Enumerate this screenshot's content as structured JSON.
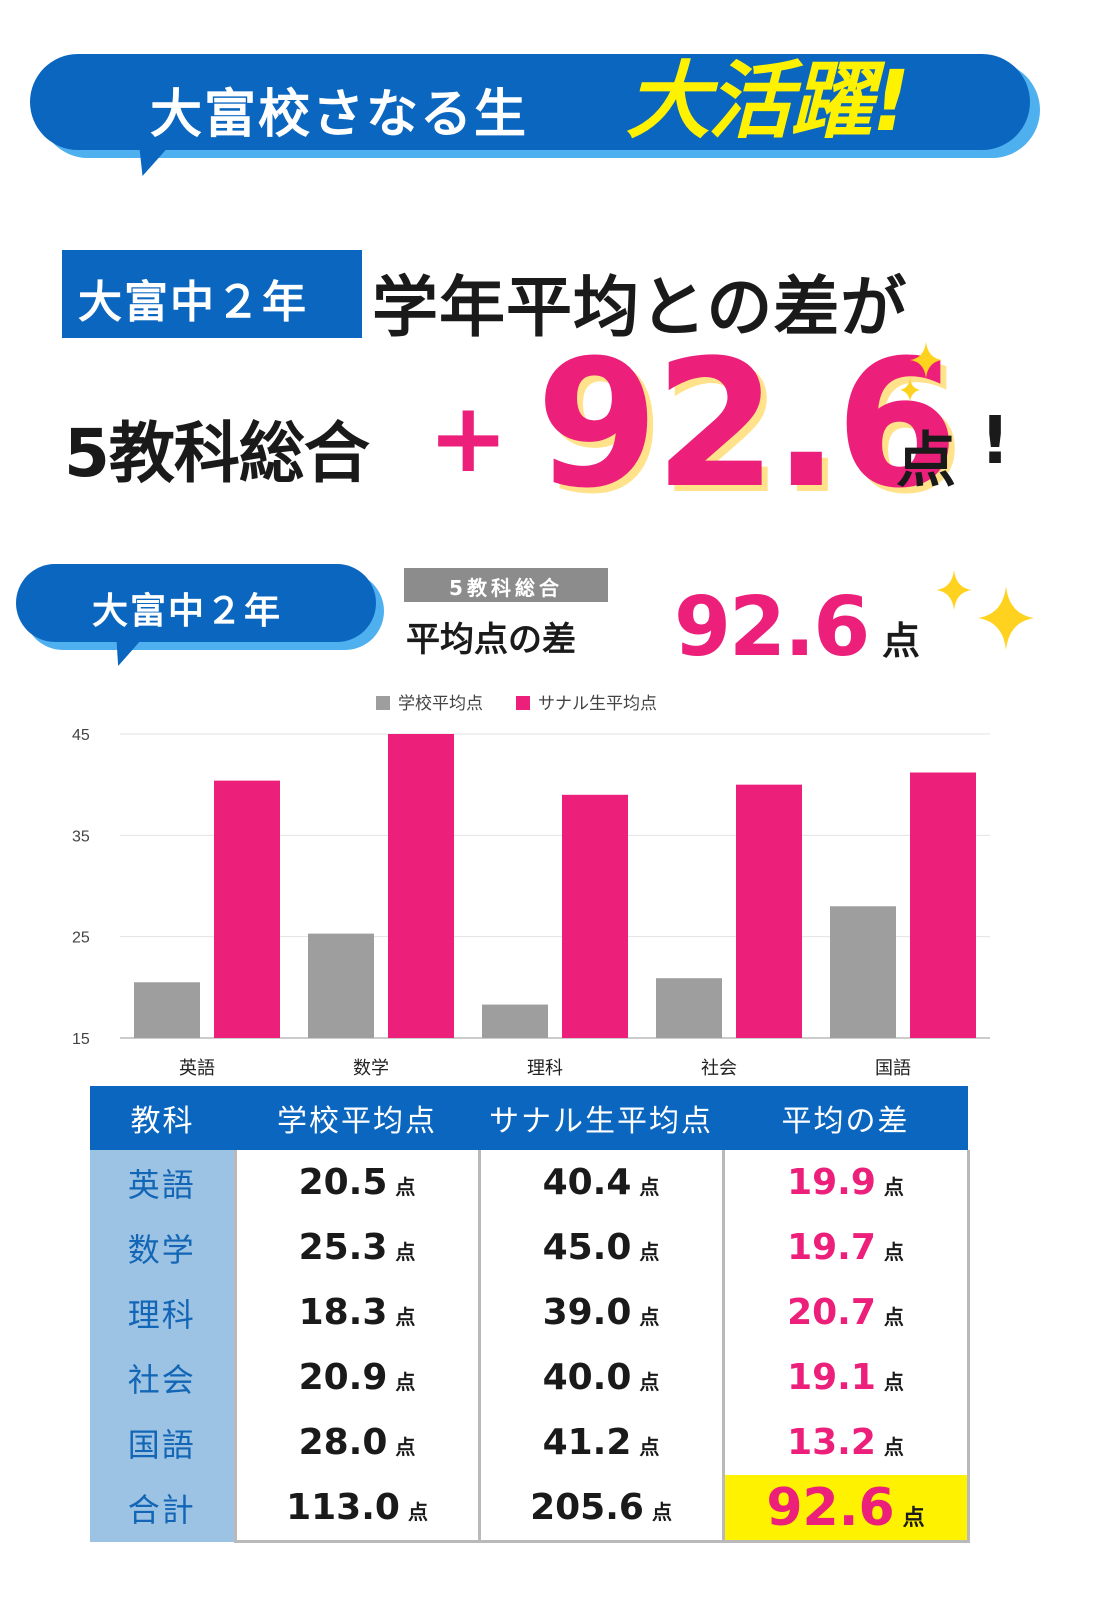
{
  "banner": {
    "text": "大富校さなる生",
    "accent": "大活躍!"
  },
  "headline": {
    "school_badge": "大富中２年",
    "line1": "学年平均との差が",
    "subject_total": "5教科総合",
    "plus": "+",
    "value": "92.6",
    "unit": "点",
    "exclamation": "!"
  },
  "summary": {
    "school_label": "大富中２年",
    "chip": "5教科総合",
    "label": "平均点の差",
    "value": "92.6",
    "unit": "点"
  },
  "colors": {
    "brand_blue": "#0b66bf",
    "accent_pink": "#ec1f7a",
    "school_gray": "#9e9e9e",
    "highlight_yellow": "#fff200"
  },
  "chart_data": {
    "type": "bar",
    "categories": [
      "英語",
      "数学",
      "理科",
      "社会",
      "国語"
    ],
    "series": [
      {
        "name": "学校平均点",
        "color": "#9e9e9e",
        "values": [
          20.5,
          25.3,
          18.3,
          20.9,
          28.0
        ]
      },
      {
        "name": "サナル生平均点",
        "color": "#ec1f7a",
        "values": [
          40.4,
          45.0,
          39.0,
          40.0,
          41.2
        ]
      }
    ],
    "ylim": [
      15,
      45
    ],
    "yticks": [
      15,
      25,
      35,
      45
    ],
    "grid": true,
    "legend": "top-center"
  },
  "table": {
    "headers": [
      "教科",
      "学校平均点",
      "サナル生平均点",
      "平均の差"
    ],
    "unit": "点",
    "rows": [
      {
        "subject": "英語",
        "school": "20.5",
        "sanaru": "40.4",
        "diff": "19.9"
      },
      {
        "subject": "数学",
        "school": "25.3",
        "sanaru": "45.0",
        "diff": "19.7"
      },
      {
        "subject": "理科",
        "school": "18.3",
        "sanaru": "39.0",
        "diff": "20.7"
      },
      {
        "subject": "社会",
        "school": "20.9",
        "sanaru": "40.0",
        "diff": "19.1"
      },
      {
        "subject": "国語",
        "school": "28.0",
        "sanaru": "41.2",
        "diff": "13.2"
      },
      {
        "subject": "合計",
        "school": "113.0",
        "sanaru": "205.6",
        "diff": "92.6"
      }
    ]
  }
}
